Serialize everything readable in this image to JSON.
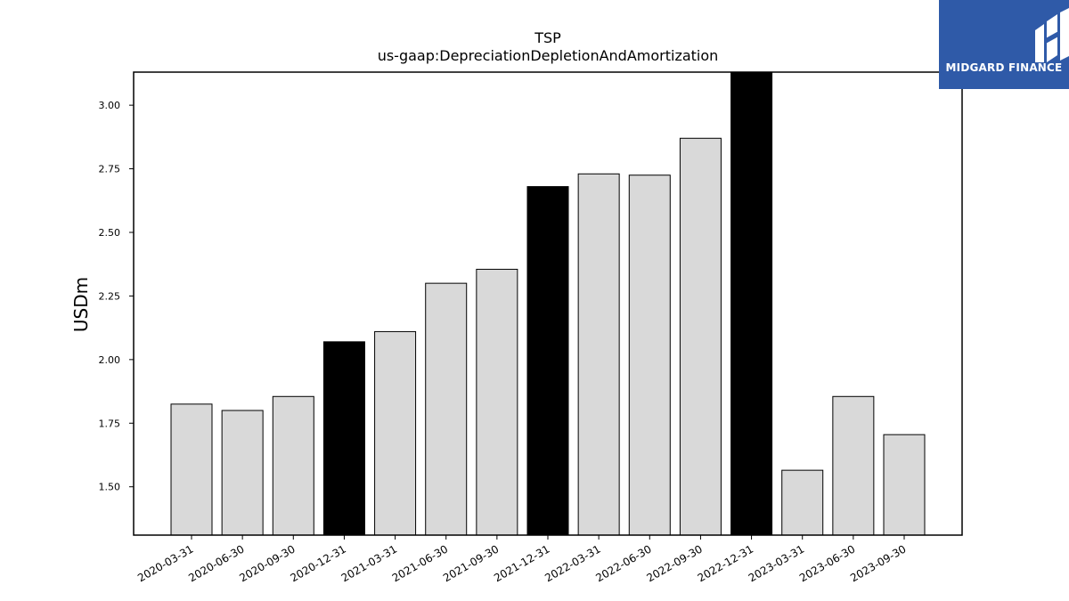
{
  "chart_data": {
    "type": "bar",
    "title": "TSP",
    "subtitle": "us-gaap:DepreciationDepletionAndAmortization",
    "xlabel": "",
    "ylabel": "USDm",
    "ylim": [
      1.31,
      3.13
    ],
    "yticks": [
      "1.50",
      "1.75",
      "2.00",
      "2.25",
      "2.50",
      "2.75",
      "3.00"
    ],
    "categories": [
      "2020-03-31",
      "2020-06-30",
      "2020-09-30",
      "2020-12-31",
      "2021-03-31",
      "2021-06-30",
      "2021-09-30",
      "2021-12-31",
      "2022-03-31",
      "2022-06-30",
      "2022-09-30",
      "2022-12-31",
      "2023-03-31",
      "2023-06-30",
      "2023-09-30"
    ],
    "values": [
      1.825,
      1.8,
      1.855,
      2.07,
      2.11,
      2.3,
      2.355,
      2.68,
      2.73,
      2.725,
      2.87,
      3.13,
      1.565,
      1.855,
      1.705
    ],
    "highlight": [
      false,
      false,
      false,
      true,
      false,
      false,
      false,
      true,
      false,
      false,
      false,
      true,
      false,
      false,
      false
    ],
    "colors": {
      "bar": "#d9d9d9",
      "highlight": "#000000",
      "edge": "#000000"
    },
    "grid": false,
    "legend": "none"
  },
  "logo": {
    "text": "MIDGARD FINANCE",
    "icon": "midgard-logo-icon",
    "bg": "#2f5aa8"
  }
}
